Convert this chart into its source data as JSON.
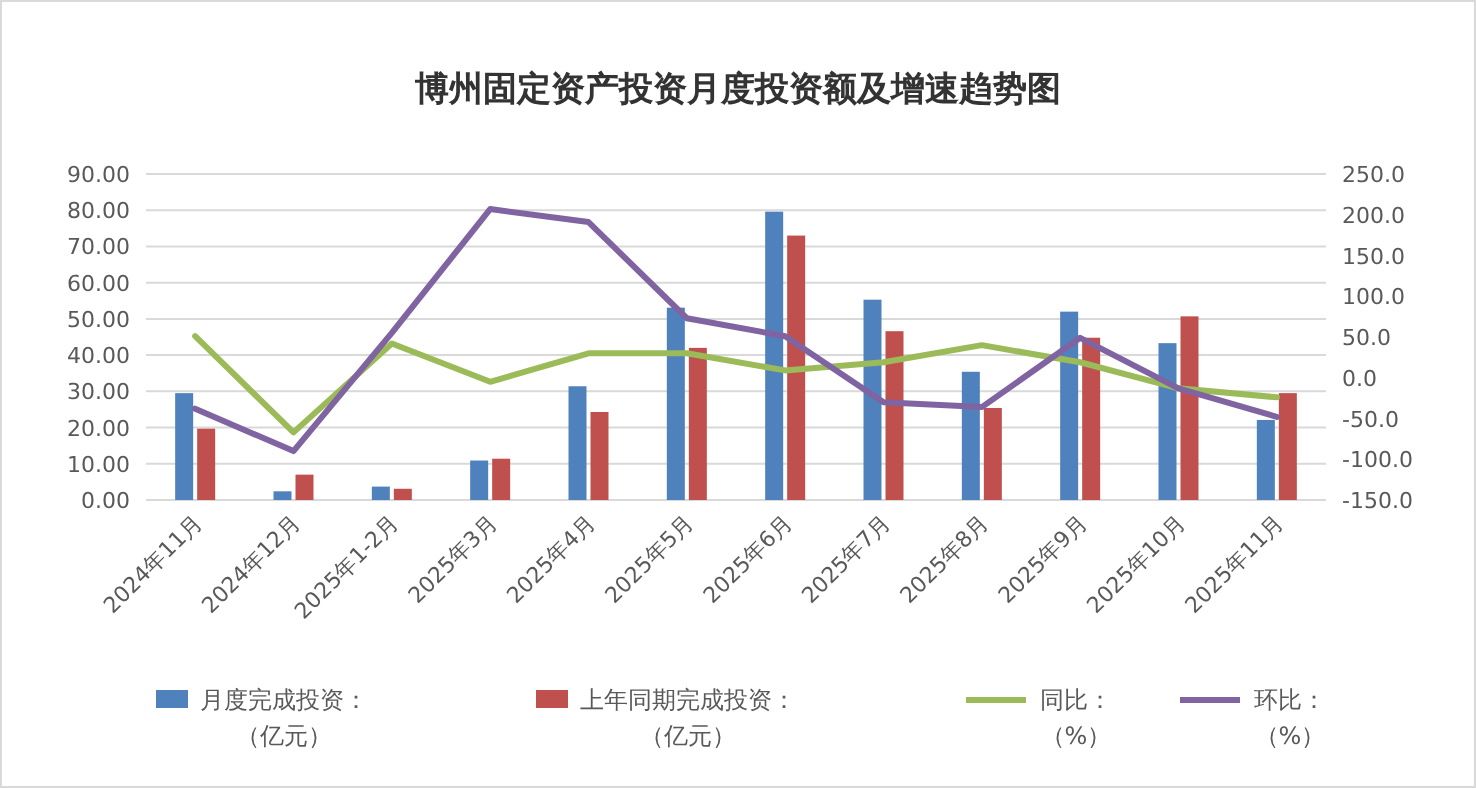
{
  "chart_data": {
    "type": "bar",
    "title": "博州固定资产投资月度投资额及增速趋势图",
    "categories": [
      "2024年11月",
      "2024年12月",
      "2025年1-2月",
      "2025年3月",
      "2025年4月",
      "2025年5月",
      "2025年6月",
      "2025年7月",
      "2025年8月",
      "2025年9月",
      "2025年10月",
      "2025年11月"
    ],
    "series": [
      {
        "name": "月度完成投资：（亿元）",
        "color": "#4f81bd",
        "values": [
          29.5,
          2.4,
          3.7,
          10.9,
          31.4,
          53.1,
          79.6,
          55.3,
          35.4,
          52.0,
          43.3,
          22.1
        ]
      },
      {
        "name": "上年同期完成投资：（亿元）",
        "color": "#c0504d",
        "values": [
          19.7,
          7.0,
          3.1,
          11.4,
          24.3,
          42.0,
          73.0,
          46.6,
          25.4,
          44.8,
          50.7,
          29.5
        ]
      },
      {
        "name": "同比：（%）",
        "type": "line",
        "axis": "y2",
        "color": "#9bbb59",
        "values": [
          51,
          -67,
          42,
          -5,
          30,
          30,
          9,
          19,
          40,
          19,
          -13,
          -24
        ]
      },
      {
        "name": "环比：（%）",
        "type": "line",
        "axis": "y2",
        "color": "#8064a2",
        "values": [
          -38,
          -90,
          55,
          207,
          191,
          73,
          51,
          -30,
          -36,
          49,
          -13,
          -48
        ]
      }
    ],
    "ylim": [
      0,
      90
    ],
    "yticks": [
      {
        "value": 0,
        "label": "0.00"
      },
      {
        "value": 10,
        "label": "10.00"
      },
      {
        "value": 20,
        "label": "20.00"
      },
      {
        "value": 30,
        "label": "30.00"
      },
      {
        "value": 40,
        "label": "40.00"
      },
      {
        "value": 50,
        "label": "50.00"
      },
      {
        "value": 60,
        "label": "60.00"
      },
      {
        "value": 70,
        "label": "70.00"
      },
      {
        "value": 80,
        "label": "80.00"
      },
      {
        "value": 90,
        "label": "90.00"
      }
    ],
    "y2lim": [
      -150,
      250
    ],
    "y2ticks": [
      {
        "value": -150,
        "label": "-150.0"
      },
      {
        "value": -100,
        "label": "-100.0"
      },
      {
        "value": -50,
        "label": "-50.0"
      },
      {
        "value": 0,
        "label": "0.0"
      },
      {
        "value": 50,
        "label": "50.0"
      },
      {
        "value": 100,
        "label": "100.0"
      },
      {
        "value": 150,
        "label": "150.0"
      },
      {
        "value": 200,
        "label": "200.0"
      },
      {
        "value": 250,
        "label": "250.0"
      }
    ],
    "grid": "y",
    "legend": "bottom"
  }
}
